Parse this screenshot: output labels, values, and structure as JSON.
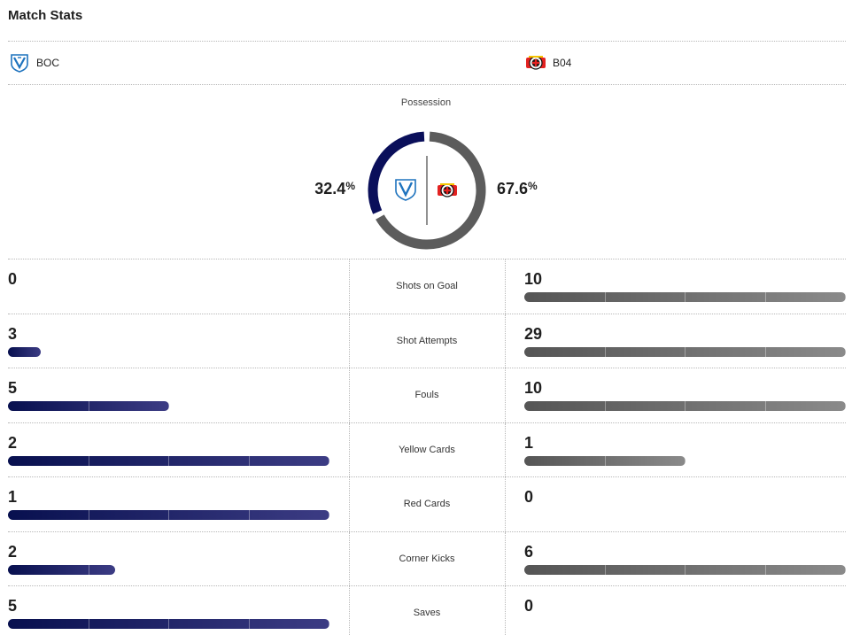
{
  "header": {
    "title": "Match Stats"
  },
  "teams": {
    "home": {
      "abbr": "BOC",
      "color": "#0a0f5a",
      "logo_icon": "vfl-bochum-shield-icon"
    },
    "away": {
      "abbr": "B04",
      "color": "#5c5c5c",
      "logo_icon": "bayer-leverkusen-crest-icon"
    }
  },
  "possession": {
    "label": "Possession",
    "home": 32.4,
    "away": 67.6,
    "home_text": "32.4",
    "away_text": "67.6",
    "unit": "%"
  },
  "stats": [
    {
      "label": "Shots on Goal",
      "home": "0",
      "away": "10",
      "home_fraction": 0,
      "away_fraction": 1
    },
    {
      "label": "Shot Attempts",
      "home": "3",
      "away": "29",
      "home_fraction": 0.103,
      "away_fraction": 1
    },
    {
      "label": "Fouls",
      "home": "5",
      "away": "10",
      "home_fraction": 0.5,
      "away_fraction": 1
    },
    {
      "label": "Yellow Cards",
      "home": "2",
      "away": "1",
      "home_fraction": 1,
      "away_fraction": 0.5
    },
    {
      "label": "Red Cards",
      "home": "1",
      "away": "0",
      "home_fraction": 1,
      "away_fraction": 0
    },
    {
      "label": "Corner Kicks",
      "home": "2",
      "away": "6",
      "home_fraction": 0.333,
      "away_fraction": 1
    },
    {
      "label": "Saves",
      "home": "5",
      "away": "0",
      "home_fraction": 1,
      "away_fraction": 0
    }
  ]
}
